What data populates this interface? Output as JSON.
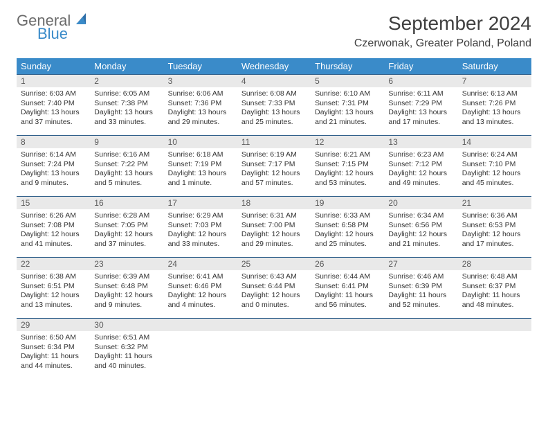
{
  "logo": {
    "general": "General",
    "blue": "Blue"
  },
  "title": "September 2024",
  "location": "Czerwonak, Greater Poland, Poland",
  "colors": {
    "header_bg": "#3a8bc9",
    "header_text": "#ffffff",
    "daynum_bg": "#e9e9e9",
    "row_border": "#2f5f8a",
    "logo_gray": "#6b6b6b",
    "logo_blue": "#3a8bc9"
  },
  "weekdays": [
    "Sunday",
    "Monday",
    "Tuesday",
    "Wednesday",
    "Thursday",
    "Friday",
    "Saturday"
  ],
  "weeks": [
    [
      {
        "n": "1",
        "sr": "6:03 AM",
        "ss": "7:40 PM",
        "dl": "13 hours and 37 minutes."
      },
      {
        "n": "2",
        "sr": "6:05 AM",
        "ss": "7:38 PM",
        "dl": "13 hours and 33 minutes."
      },
      {
        "n": "3",
        "sr": "6:06 AM",
        "ss": "7:36 PM",
        "dl": "13 hours and 29 minutes."
      },
      {
        "n": "4",
        "sr": "6:08 AM",
        "ss": "7:33 PM",
        "dl": "13 hours and 25 minutes."
      },
      {
        "n": "5",
        "sr": "6:10 AM",
        "ss": "7:31 PM",
        "dl": "13 hours and 21 minutes."
      },
      {
        "n": "6",
        "sr": "6:11 AM",
        "ss": "7:29 PM",
        "dl": "13 hours and 17 minutes."
      },
      {
        "n": "7",
        "sr": "6:13 AM",
        "ss": "7:26 PM",
        "dl": "13 hours and 13 minutes."
      }
    ],
    [
      {
        "n": "8",
        "sr": "6:14 AM",
        "ss": "7:24 PM",
        "dl": "13 hours and 9 minutes."
      },
      {
        "n": "9",
        "sr": "6:16 AM",
        "ss": "7:22 PM",
        "dl": "13 hours and 5 minutes."
      },
      {
        "n": "10",
        "sr": "6:18 AM",
        "ss": "7:19 PM",
        "dl": "13 hours and 1 minute."
      },
      {
        "n": "11",
        "sr": "6:19 AM",
        "ss": "7:17 PM",
        "dl": "12 hours and 57 minutes."
      },
      {
        "n": "12",
        "sr": "6:21 AM",
        "ss": "7:15 PM",
        "dl": "12 hours and 53 minutes."
      },
      {
        "n": "13",
        "sr": "6:23 AM",
        "ss": "7:12 PM",
        "dl": "12 hours and 49 minutes."
      },
      {
        "n": "14",
        "sr": "6:24 AM",
        "ss": "7:10 PM",
        "dl": "12 hours and 45 minutes."
      }
    ],
    [
      {
        "n": "15",
        "sr": "6:26 AM",
        "ss": "7:08 PM",
        "dl": "12 hours and 41 minutes."
      },
      {
        "n": "16",
        "sr": "6:28 AM",
        "ss": "7:05 PM",
        "dl": "12 hours and 37 minutes."
      },
      {
        "n": "17",
        "sr": "6:29 AM",
        "ss": "7:03 PM",
        "dl": "12 hours and 33 minutes."
      },
      {
        "n": "18",
        "sr": "6:31 AM",
        "ss": "7:00 PM",
        "dl": "12 hours and 29 minutes."
      },
      {
        "n": "19",
        "sr": "6:33 AM",
        "ss": "6:58 PM",
        "dl": "12 hours and 25 minutes."
      },
      {
        "n": "20",
        "sr": "6:34 AM",
        "ss": "6:56 PM",
        "dl": "12 hours and 21 minutes."
      },
      {
        "n": "21",
        "sr": "6:36 AM",
        "ss": "6:53 PM",
        "dl": "12 hours and 17 minutes."
      }
    ],
    [
      {
        "n": "22",
        "sr": "6:38 AM",
        "ss": "6:51 PM",
        "dl": "12 hours and 13 minutes."
      },
      {
        "n": "23",
        "sr": "6:39 AM",
        "ss": "6:48 PM",
        "dl": "12 hours and 9 minutes."
      },
      {
        "n": "24",
        "sr": "6:41 AM",
        "ss": "6:46 PM",
        "dl": "12 hours and 4 minutes."
      },
      {
        "n": "25",
        "sr": "6:43 AM",
        "ss": "6:44 PM",
        "dl": "12 hours and 0 minutes."
      },
      {
        "n": "26",
        "sr": "6:44 AM",
        "ss": "6:41 PM",
        "dl": "11 hours and 56 minutes."
      },
      {
        "n": "27",
        "sr": "6:46 AM",
        "ss": "6:39 PM",
        "dl": "11 hours and 52 minutes."
      },
      {
        "n": "28",
        "sr": "6:48 AM",
        "ss": "6:37 PM",
        "dl": "11 hours and 48 minutes."
      }
    ],
    [
      {
        "n": "29",
        "sr": "6:50 AM",
        "ss": "6:34 PM",
        "dl": "11 hours and 44 minutes."
      },
      {
        "n": "30",
        "sr": "6:51 AM",
        "ss": "6:32 PM",
        "dl": "11 hours and 40 minutes."
      },
      null,
      null,
      null,
      null,
      null
    ]
  ],
  "labels": {
    "sunrise": "Sunrise:",
    "sunset": "Sunset:",
    "daylight": "Daylight:"
  }
}
